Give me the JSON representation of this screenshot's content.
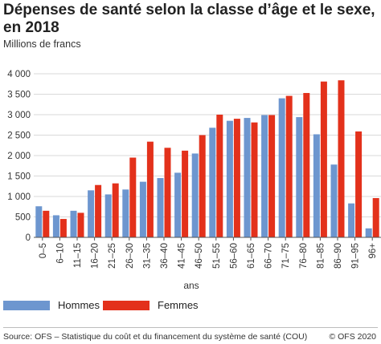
{
  "title": "Dépenses de santé selon la classe d’âge et le sexe, en 2018",
  "subtitle": "Millions de francs",
  "source": "Source: OFS – Statistique du coût et du financement du système de santé (COU)",
  "copyright": "© OFS 2020",
  "colors": {
    "hommes": "#6d96cf",
    "femmes": "#e3311b",
    "grid": "#d9d9d9",
    "axis": "#555555"
  },
  "chart_data": {
    "type": "bar",
    "title": "Dépenses de santé selon la classe d’âge et le sexe, en 2018",
    "xlabel": "ans",
    "ylabel": "",
    "ylim": [
      0,
      4000
    ],
    "yticks": [
      0,
      500,
      1000,
      1500,
      2000,
      2500,
      3000,
      3500,
      4000
    ],
    "ytick_labels": [
      "0",
      "500",
      "1 000",
      "1 500",
      "2 000",
      "2 500",
      "3 000",
      "3 500",
      "4 000"
    ],
    "grid": true,
    "legend_position": "bottom",
    "categories": [
      "0–5",
      "6–10",
      "11–15",
      "16–20",
      "21–25",
      "26–30",
      "31–35",
      "36–40",
      "41–45",
      "46–50",
      "51–55",
      "56–60",
      "61–65",
      "66–70",
      "71–75",
      "76–80",
      "81–85",
      "86–90",
      "91–95",
      "96+"
    ],
    "series": [
      {
        "name": "Hommes",
        "values": [
          760,
          540,
          650,
          1150,
          1050,
          1170,
          1360,
          1450,
          1580,
          2050,
          2680,
          2850,
          2920,
          2990,
          3400,
          2940,
          2520,
          1780,
          830,
          220
        ]
      },
      {
        "name": "Femmes",
        "values": [
          650,
          450,
          600,
          1280,
          1320,
          1950,
          2340,
          2190,
          2120,
          2500,
          3000,
          2900,
          2810,
          2990,
          3460,
          3530,
          3810,
          3840,
          2590,
          960
        ]
      }
    ]
  }
}
